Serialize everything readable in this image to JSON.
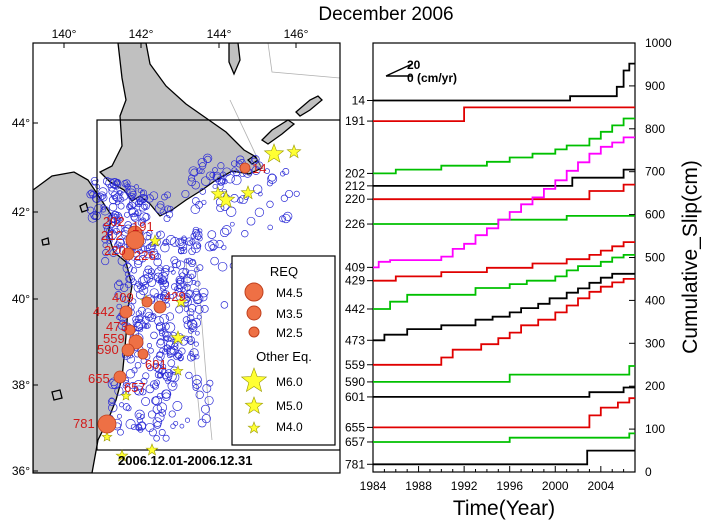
{
  "title": "December 2006",
  "colors": {
    "land": "#c0c0c0",
    "eq_circle": "#2b2bd6",
    "repeater": "#ee7045",
    "repeater_edge": "#c0401e",
    "other_eq": "#ffff33",
    "label_red": "#d11a1a",
    "series_black": "#000000",
    "series_red": "#e00000",
    "series_green": "#00c000",
    "series_magenta": "#ff00ff"
  },
  "map": {
    "lon_ticks": [
      "140°",
      "142°",
      "144°",
      "146°"
    ],
    "lat_ticks": [
      "44°",
      "42°",
      "40°",
      "38°",
      "36°"
    ],
    "date_range": "2006.12.01-2006.12.31",
    "legend": {
      "req_title": "REQ",
      "req_items": [
        "M4.5",
        "M3.5",
        "M2.5"
      ],
      "other_title": "Other Eq.",
      "other_items": [
        "M6.0",
        "M5.0",
        "M4.0"
      ]
    },
    "sequence_labels": [
      "14",
      "191",
      "202",
      "212",
      "220",
      "226",
      "409",
      "429",
      "442",
      "473",
      "559",
      "590",
      "601",
      "655",
      "657",
      "781"
    ]
  },
  "chart_data": {
    "type": "line",
    "title": "December 2006",
    "xlabel": "Time(Year)",
    "ylabel": "Cumulative_Slip(cm)",
    "xlim": [
      1984,
      2007
    ],
    "ylim": [
      0,
      1000
    ],
    "x_ticks": [
      "1984",
      "1988",
      "1992",
      "1996",
      "2000",
      "2004"
    ],
    "y_ticks": [
      "0",
      "100",
      "200",
      "300",
      "400",
      "500",
      "600",
      "700",
      "800",
      "900",
      "1000"
    ],
    "scale_label_top": "20",
    "scale_label_bottom": "0 (cm/yr)",
    "series": [
      {
        "name": "14",
        "color": "black",
        "points": [
          [
            1984,
            866
          ],
          [
            2001.3,
            866
          ],
          [
            2001.3,
            876
          ],
          [
            2005.4,
            876
          ],
          [
            2005.4,
            898
          ],
          [
            2006,
            898
          ],
          [
            2006,
            936
          ],
          [
            2006.5,
            936
          ],
          [
            2006.5,
            952
          ],
          [
            2007,
            952
          ]
        ]
      },
      {
        "name": "191",
        "color": "red",
        "points": [
          [
            1984,
            818
          ],
          [
            1992,
            818
          ],
          [
            1992,
            850
          ],
          [
            2007,
            850
          ]
        ]
      },
      {
        "name": "202",
        "color": "green",
        "points": [
          [
            1984,
            696
          ],
          [
            1986,
            696
          ],
          [
            1986,
            705
          ],
          [
            1990,
            705
          ],
          [
            1990,
            714
          ],
          [
            1994,
            714
          ],
          [
            1994,
            723
          ],
          [
            1996,
            723
          ],
          [
            1996,
            733
          ],
          [
            1998,
            733
          ],
          [
            1998,
            742
          ],
          [
            2000,
            742
          ],
          [
            2000,
            752
          ],
          [
            2001,
            752
          ],
          [
            2001,
            761
          ],
          [
            2003,
            761
          ],
          [
            2003,
            777
          ],
          [
            2004,
            777
          ],
          [
            2004,
            793
          ],
          [
            2005,
            793
          ],
          [
            2005,
            808
          ],
          [
            2006,
            808
          ],
          [
            2006,
            824
          ],
          [
            2007,
            824
          ]
        ]
      },
      {
        "name": "212",
        "color": "black",
        "points": [
          [
            1984,
            667
          ],
          [
            2001.5,
            667
          ],
          [
            2001.5,
            686
          ],
          [
            2006,
            686
          ],
          [
            2006,
            705
          ],
          [
            2007,
            705
          ]
        ]
      },
      {
        "name": "220",
        "color": "red",
        "points": [
          [
            1984,
            636
          ],
          [
            2003,
            636
          ],
          [
            2003,
            655
          ],
          [
            2006,
            655
          ],
          [
            2006,
            670
          ],
          [
            2007,
            670
          ]
        ]
      },
      {
        "name": "226",
        "color": "green",
        "points": [
          [
            1984,
            578
          ],
          [
            1995,
            578
          ],
          [
            1995,
            588
          ],
          [
            2001,
            588
          ],
          [
            2001,
            597
          ],
          [
            2007,
            597
          ]
        ]
      },
      {
        "name": "409",
        "color": "magenta",
        "points": [
          [
            1984,
            477
          ],
          [
            1984.5,
            477
          ],
          [
            1984.5,
            490
          ],
          [
            1985.5,
            490
          ],
          [
            1985.5,
            494
          ],
          [
            1990,
            494
          ],
          [
            1990,
            502
          ],
          [
            1991,
            502
          ],
          [
            1991,
            520
          ],
          [
            1992,
            520
          ],
          [
            1992,
            532
          ],
          [
            1993,
            532
          ],
          [
            1993,
            552
          ],
          [
            1994,
            552
          ],
          [
            1994,
            568
          ],
          [
            1995,
            568
          ],
          [
            1995,
            588
          ],
          [
            1996,
            588
          ],
          [
            1996,
            606
          ],
          [
            1997,
            606
          ],
          [
            1997,
            624
          ],
          [
            1998,
            624
          ],
          [
            1998,
            640
          ],
          [
            1999,
            640
          ],
          [
            1999,
            660
          ],
          [
            2000,
            660
          ],
          [
            2000,
            680
          ],
          [
            2001,
            680
          ],
          [
            2001,
            702
          ],
          [
            2002,
            702
          ],
          [
            2002,
            722
          ],
          [
            2003,
            722
          ],
          [
            2003,
            742
          ],
          [
            2004,
            742
          ],
          [
            2004,
            758
          ],
          [
            2005,
            758
          ],
          [
            2005,
            768
          ],
          [
            2006,
            768
          ],
          [
            2006,
            780
          ],
          [
            2007,
            780
          ]
        ]
      },
      {
        "name": "429",
        "color": "red",
        "points": [
          [
            1984,
            446
          ],
          [
            1986,
            446
          ],
          [
            1986,
            456
          ],
          [
            1990,
            456
          ],
          [
            1990,
            466
          ],
          [
            1994,
            466
          ],
          [
            1994,
            476
          ],
          [
            1998,
            476
          ],
          [
            1998,
            486
          ],
          [
            2001,
            486
          ],
          [
            2001,
            496
          ],
          [
            2003,
            496
          ],
          [
            2003,
            506
          ],
          [
            2004,
            506
          ],
          [
            2004,
            516
          ],
          [
            2005,
            516
          ],
          [
            2005,
            526
          ],
          [
            2006,
            526
          ],
          [
            2006,
            536
          ],
          [
            2007,
            536
          ]
        ]
      },
      {
        "name": "442",
        "color": "green",
        "points": [
          [
            1984,
            380
          ],
          [
            1985.5,
            380
          ],
          [
            1985.5,
            397
          ],
          [
            1987,
            397
          ],
          [
            1987,
            413
          ],
          [
            1993,
            413
          ],
          [
            1993,
            429
          ],
          [
            1996,
            429
          ],
          [
            1996,
            438
          ],
          [
            1997.5,
            438
          ],
          [
            1997.5,
            446
          ],
          [
            2000,
            446
          ],
          [
            2000,
            456
          ],
          [
            2001,
            456
          ],
          [
            2001,
            470
          ],
          [
            2002,
            470
          ],
          [
            2002,
            480
          ],
          [
            2004,
            480
          ],
          [
            2004,
            490
          ],
          [
            2005,
            490
          ],
          [
            2005,
            500
          ],
          [
            2006,
            500
          ],
          [
            2006,
            506
          ],
          [
            2007,
            506
          ]
        ]
      },
      {
        "name": "473",
        "color": "black",
        "points": [
          [
            1984,
            307
          ],
          [
            1985,
            307
          ],
          [
            1985,
            320
          ],
          [
            1987,
            320
          ],
          [
            1987,
            333
          ],
          [
            1990,
            333
          ],
          [
            1990,
            342
          ],
          [
            1993,
            342
          ],
          [
            1993,
            355
          ],
          [
            1994.5,
            355
          ],
          [
            1994.5,
            362
          ],
          [
            1996,
            362
          ],
          [
            1996,
            372
          ],
          [
            1997,
            372
          ],
          [
            1997,
            382
          ],
          [
            1998.5,
            382
          ],
          [
            1998.5,
            392
          ],
          [
            1999.5,
            392
          ],
          [
            1999.5,
            405
          ],
          [
            2001,
            405
          ],
          [
            2001,
            418
          ],
          [
            2002,
            418
          ],
          [
            2002,
            428
          ],
          [
            2003,
            428
          ],
          [
            2003,
            441
          ],
          [
            2004,
            441
          ],
          [
            2004,
            453
          ],
          [
            2005,
            453
          ],
          [
            2005,
            462
          ],
          [
            2007,
            462
          ]
        ]
      },
      {
        "name": "559",
        "color": "red",
        "points": [
          [
            1984,
            250
          ],
          [
            1990,
            250
          ],
          [
            1990,
            267
          ],
          [
            1991,
            267
          ],
          [
            1991,
            285
          ],
          [
            1993.5,
            285
          ],
          [
            1993.5,
            298
          ],
          [
            1995,
            298
          ],
          [
            1995,
            312
          ],
          [
            1996,
            312
          ],
          [
            1996,
            325
          ],
          [
            1997,
            325
          ],
          [
            1997,
            342
          ],
          [
            1998.5,
            342
          ],
          [
            1998.5,
            355
          ],
          [
            2000,
            355
          ],
          [
            2000,
            372
          ],
          [
            2001,
            372
          ],
          [
            2001,
            388
          ],
          [
            2002,
            388
          ],
          [
            2002,
            405
          ],
          [
            2003,
            405
          ],
          [
            2003,
            420
          ],
          [
            2004,
            420
          ],
          [
            2004,
            432
          ],
          [
            2005,
            432
          ],
          [
            2005,
            442
          ],
          [
            2006,
            442
          ],
          [
            2006,
            450
          ],
          [
            2007,
            450
          ]
        ]
      },
      {
        "name": "590",
        "color": "green",
        "points": [
          [
            1984,
            210
          ],
          [
            1996,
            210
          ],
          [
            1996,
            227
          ],
          [
            2006.5,
            227
          ],
          [
            2006.5,
            247
          ],
          [
            2007,
            247
          ]
        ]
      },
      {
        "name": "601",
        "color": "black",
        "points": [
          [
            1984,
            175
          ],
          [
            2003,
            175
          ],
          [
            2003,
            186
          ],
          [
            2006,
            186
          ],
          [
            2006,
            197
          ],
          [
            2007,
            197
          ]
        ]
      },
      {
        "name": "655",
        "color": "red",
        "points": [
          [
            1984,
            104
          ],
          [
            2003,
            104
          ],
          [
            2003,
            132
          ],
          [
            2004,
            132
          ],
          [
            2004,
            150
          ],
          [
            2005.5,
            150
          ],
          [
            2005.5,
            162
          ],
          [
            2006.5,
            162
          ],
          [
            2006.5,
            172
          ],
          [
            2007,
            172
          ]
        ]
      },
      {
        "name": "657",
        "color": "green",
        "points": [
          [
            1984,
            70
          ],
          [
            1996,
            70
          ],
          [
            1996,
            80
          ],
          [
            2006.5,
            80
          ],
          [
            2006.5,
            90
          ],
          [
            2007,
            90
          ]
        ]
      },
      {
        "name": "781",
        "color": "black",
        "points": [
          [
            1984,
            18
          ],
          [
            2002.8,
            18
          ],
          [
            2002.8,
            50
          ],
          [
            2007,
            50
          ]
        ]
      }
    ]
  }
}
